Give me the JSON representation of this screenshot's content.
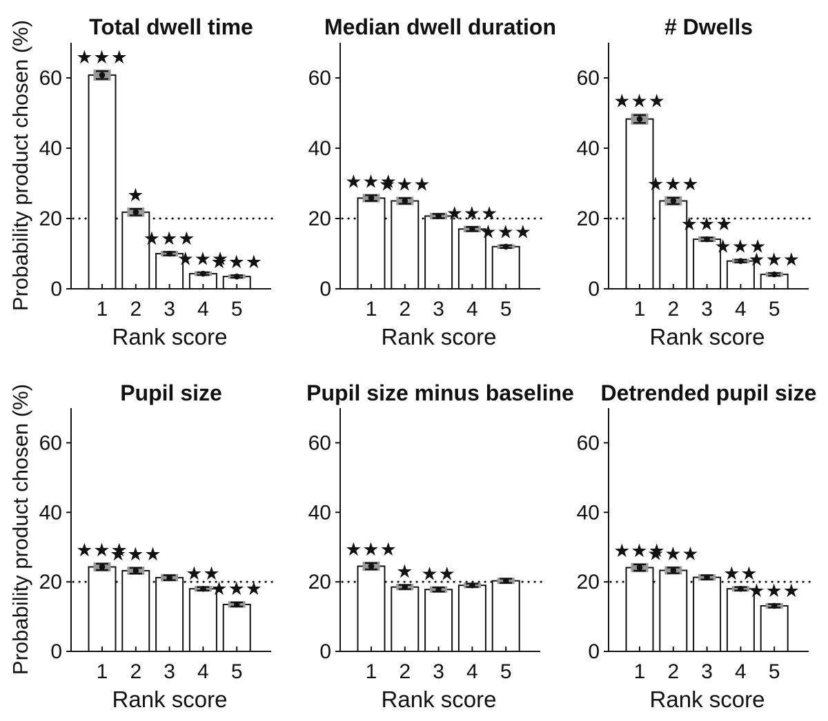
{
  "figure": {
    "background": "#ffffff",
    "ink_color": "#111111",
    "bar_fill": "#ffffff",
    "gray_band_color": "#999999",
    "star_glyph": "★",
    "ylabel": "Probability product chosen (%)",
    "xlabel": "Rank score",
    "yticks": [
      0,
      20,
      40,
      60
    ],
    "ylim": [
      0,
      70
    ],
    "reference_line": 20,
    "categories": [
      "1",
      "2",
      "3",
      "4",
      "5"
    ]
  },
  "chart_data": [
    {
      "type": "bar",
      "title": "Total dwell time",
      "xlabel": "Rank score",
      "ylabel": "Probability product chosen (%)",
      "categories": [
        "1",
        "2",
        "3",
        "4",
        "5"
      ],
      "values": [
        60.8,
        21.8,
        10.0,
        4.3,
        3.5
      ],
      "errors": [
        1.1,
        0.9,
        0.5,
        0.4,
        0.35
      ],
      "significance": [
        "***",
        "*",
        "***",
        "***",
        "***"
      ],
      "ylim": [
        0,
        70
      ],
      "yticks": [
        0,
        20,
        40,
        60
      ],
      "reference_line": 20,
      "grid": false
    },
    {
      "type": "bar",
      "title": "Median dwell duration",
      "xlabel": "Rank score",
      "ylabel": "",
      "categories": [
        "1",
        "2",
        "3",
        "4",
        "5"
      ],
      "values": [
        25.8,
        25.0,
        20.7,
        17.0,
        12.0
      ],
      "errors": [
        0.8,
        0.8,
        0.6,
        0.6,
        0.4
      ],
      "significance": [
        "***",
        "***",
        "",
        "***",
        "***"
      ],
      "ylim": [
        0,
        70
      ],
      "yticks": [
        0,
        20,
        40,
        60
      ],
      "reference_line": 20,
      "grid": false
    },
    {
      "type": "bar",
      "title": "# Dwells",
      "xlabel": "Rank score",
      "ylabel": "",
      "categories": [
        "1",
        "2",
        "3",
        "4",
        "5"
      ],
      "values": [
        48.3,
        25.0,
        14.1,
        7.9,
        4.1
      ],
      "errors": [
        1.1,
        0.9,
        0.5,
        0.4,
        0.4
      ],
      "significance": [
        "***",
        "***",
        "***",
        "***",
        "***"
      ],
      "ylim": [
        0,
        70
      ],
      "yticks": [
        0,
        20,
        40,
        60
      ],
      "reference_line": 20,
      "grid": false
    },
    {
      "type": "bar",
      "title": "Pupil size",
      "xlabel": "Rank score",
      "ylabel": "Probability product chosen (%)",
      "categories": [
        "1",
        "2",
        "3",
        "4",
        "5"
      ],
      "values": [
        24.3,
        23.2,
        21.2,
        18.0,
        13.5
      ],
      "errors": [
        0.9,
        0.8,
        0.7,
        0.5,
        0.6
      ],
      "significance": [
        "***",
        "***",
        "",
        "**",
        "***"
      ],
      "ylim": [
        0,
        70
      ],
      "yticks": [
        0,
        20,
        40,
        60
      ],
      "reference_line": 20,
      "grid": false
    },
    {
      "type": "bar",
      "title": "Pupil size minus baseline",
      "xlabel": "Rank score",
      "ylabel": "",
      "categories": [
        "1",
        "2",
        "3",
        "4",
        "5"
      ],
      "values": [
        24.5,
        18.5,
        17.8,
        19.0,
        20.3
      ],
      "errors": [
        0.9,
        0.6,
        0.6,
        0.5,
        0.6
      ],
      "significance": [
        "***",
        "*",
        "**",
        "",
        ""
      ],
      "ylim": [
        0,
        70
      ],
      "yticks": [
        0,
        20,
        40,
        60
      ],
      "reference_line": 20,
      "grid": false
    },
    {
      "type": "bar",
      "title": "Detrended pupil size",
      "xlabel": "Rank score",
      "ylabel": "",
      "categories": [
        "1",
        "2",
        "3",
        "4",
        "5"
      ],
      "values": [
        24.1,
        23.3,
        21.3,
        18.0,
        13.1
      ],
      "errors": [
        0.9,
        0.8,
        0.6,
        0.5,
        0.5
      ],
      "significance": [
        "***",
        "***",
        "",
        "**",
        "***"
      ],
      "ylim": [
        0,
        70
      ],
      "yticks": [
        0,
        20,
        40,
        60
      ],
      "reference_line": 20,
      "grid": false
    }
  ]
}
